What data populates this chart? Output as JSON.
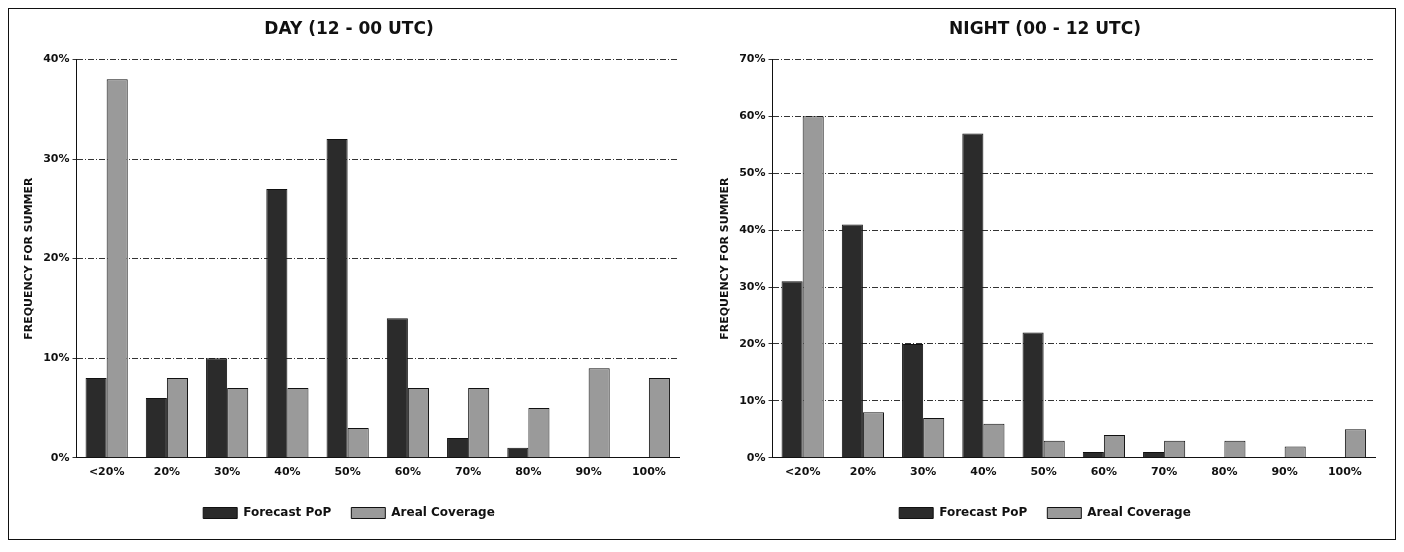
{
  "chart_data": [
    {
      "type": "bar",
      "title": "DAY (12 - 00 UTC)",
      "ylabel": "FREQUENCY FOR SUMMER",
      "categories": [
        "<20%",
        "20%",
        "30%",
        "40%",
        "50%",
        "60%",
        "70%",
        "80%",
        "90%",
        "100%"
      ],
      "series": [
        {
          "name": "Forecast PoP",
          "color": "#2b2b2b",
          "values": [
            8,
            6,
            10,
            27,
            32,
            14,
            2,
            1,
            0,
            0
          ]
        },
        {
          "name": "Areal Coverage",
          "color": "#9a9a9a",
          "values": [
            38,
            8,
            7,
            7,
            3,
            7,
            7,
            5,
            9,
            8
          ]
        }
      ],
      "ylim": [
        0,
        40
      ],
      "yticks": [
        {
          "value": 0,
          "label": "0%"
        },
        {
          "value": 10,
          "label": "10%"
        },
        {
          "value": 20,
          "label": "20%"
        },
        {
          "value": 30,
          "label": "30%"
        },
        {
          "value": 40,
          "label": "40%"
        }
      ],
      "grid": "y",
      "legend": "bottom"
    },
    {
      "type": "bar",
      "title": "NIGHT (00 - 12 UTC)",
      "ylabel": "FREQUENCY FOR SUMMER",
      "categories": [
        "<20%",
        "20%",
        "30%",
        "40%",
        "50%",
        "60%",
        "70%",
        "80%",
        "90%",
        "100%"
      ],
      "series": [
        {
          "name": "Forecast PoP",
          "color": "#2b2b2b",
          "values": [
            31,
            41,
            20,
            57,
            22,
            1,
            1,
            0,
            0,
            0
          ]
        },
        {
          "name": "Areal Coverage",
          "color": "#9a9a9a",
          "values": [
            60,
            8,
            7,
            6,
            3,
            4,
            3,
            3,
            2,
            5
          ]
        }
      ],
      "ylim": [
        0,
        70
      ],
      "yticks": [
        {
          "value": 0,
          "label": "0%"
        },
        {
          "value": 10,
          "label": "10%"
        },
        {
          "value": 20,
          "label": "20%"
        },
        {
          "value": 30,
          "label": "30%"
        },
        {
          "value": 40,
          "label": "40%"
        },
        {
          "value": 50,
          "label": "50%"
        },
        {
          "value": 60,
          "label": "60%"
        },
        {
          "value": 70,
          "label": "70%"
        }
      ],
      "grid": "y",
      "legend": "bottom"
    }
  ]
}
